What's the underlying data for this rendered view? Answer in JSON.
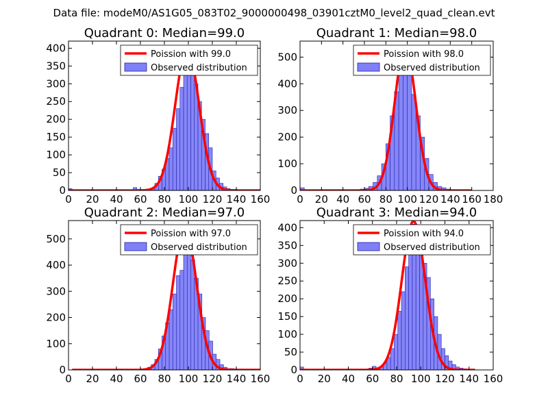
{
  "figure": {
    "suptitle": "Data file: modeM0/AS1G05_083T02_9000000498_03901cztM0_level2_quad_clean.evt"
  },
  "colors": {
    "bar_fill": "#7f7ff8",
    "bar_edge": "#2222aa",
    "line": "#ff0000"
  },
  "chart_data": [
    {
      "type": "bar",
      "title": "Quadrant 0: Median=99.0",
      "xlim": [
        0,
        160
      ],
      "ylim": [
        0,
        420
      ],
      "xticks": [
        0,
        20,
        40,
        60,
        80,
        100,
        120,
        140,
        160
      ],
      "yticks": [
        0,
        50,
        100,
        150,
        200,
        250,
        300,
        350,
        400
      ],
      "legend": {
        "position": "top-right",
        "line_label": "Poission with 99.0",
        "bar_label": "Observed distribution"
      },
      "poisson_mean": 99.0,
      "poisson_peak": 399,
      "line_x": [
        0,
        60,
        160
      ],
      "bin_width": 3,
      "bins_x": [
        0,
        54,
        57,
        69,
        72,
        75,
        78,
        81,
        84,
        87,
        90,
        93,
        96,
        99,
        102,
        105,
        108,
        111,
        114,
        117,
        120,
        123,
        126,
        129,
        132,
        135,
        138
      ],
      "bins_y": [
        5,
        8,
        3,
        5,
        20,
        40,
        60,
        90,
        120,
        175,
        230,
        290,
        380,
        380,
        340,
        300,
        250,
        200,
        160,
        120,
        55,
        35,
        20,
        10,
        5,
        3,
        3
      ]
    },
    {
      "type": "bar",
      "title": "Quadrant 1: Median=98.0",
      "xlim": [
        0,
        180
      ],
      "ylim": [
        0,
        560
      ],
      "xticks": [
        0,
        20,
        40,
        60,
        80,
        100,
        120,
        140,
        160,
        180
      ],
      "yticks": [
        0,
        100,
        200,
        300,
        400,
        500
      ],
      "legend": {
        "position": "top-right",
        "line_label": "Poission with 98.0",
        "bar_label": "Observed distribution"
      },
      "poisson_mean": 98.0,
      "poisson_peak": 540,
      "line_x": [
        0,
        60,
        160
      ],
      "bin_width": 4,
      "bins_x": [
        0,
        56,
        60,
        64,
        68,
        72,
        76,
        80,
        84,
        88,
        92,
        96,
        100,
        104,
        108,
        112,
        116,
        120,
        124,
        128,
        132,
        136,
        140,
        144
      ],
      "bins_y": [
        10,
        5,
        8,
        15,
        30,
        55,
        100,
        175,
        280,
        370,
        480,
        540,
        500,
        360,
        280,
        200,
        120,
        60,
        30,
        15,
        10,
        5,
        3,
        2
      ]
    },
    {
      "type": "bar",
      "title": "Quadrant 2: Median=97.0",
      "xlim": [
        0,
        160
      ],
      "ylim": [
        0,
        570
      ],
      "xticks": [
        0,
        20,
        40,
        60,
        80,
        100,
        120,
        140,
        160
      ],
      "yticks": [
        0,
        100,
        200,
        300,
        400,
        500
      ],
      "legend": {
        "position": "top-right",
        "line_label": "Poission with 97.0",
        "bar_label": "Observed distribution"
      },
      "poisson_mean": 97.0,
      "poisson_peak": 545,
      "line_x": [
        3,
        60,
        160
      ],
      "bin_width": 3.3,
      "bins_x": [
        63,
        66,
        69,
        72,
        75,
        78,
        81,
        84,
        87,
        90,
        93,
        96,
        99,
        102,
        105,
        108,
        111,
        114,
        117,
        120,
        123,
        126,
        129,
        132,
        135,
        138,
        141,
        144,
        147
      ],
      "bins_y": [
        5,
        10,
        20,
        40,
        80,
        130,
        180,
        230,
        290,
        360,
        380,
        550,
        480,
        420,
        350,
        290,
        200,
        150,
        110,
        60,
        40,
        20,
        10,
        5,
        5,
        3,
        3,
        3,
        3
      ]
    },
    {
      "type": "bar",
      "title": "Quadrant 3: Median=94.0",
      "xlim": [
        0,
        160
      ],
      "ylim": [
        0,
        420
      ],
      "xticks": [
        0,
        20,
        40,
        60,
        80,
        100,
        120,
        140,
        160
      ],
      "yticks": [
        0,
        50,
        100,
        150,
        200,
        250,
        300,
        350,
        400
      ],
      "legend": {
        "position": "top-right",
        "line_label": "Poission with 94.0",
        "bar_label": "Observed distribution"
      },
      "poisson_mean": 94.0,
      "poisson_peak": 418,
      "line_x": [
        0,
        55,
        145
      ],
      "bin_width": 3,
      "bins_x": [
        0,
        57,
        60,
        63,
        66,
        69,
        72,
        75,
        78,
        81,
        84,
        87,
        90,
        93,
        96,
        99,
        102,
        105,
        108,
        111,
        114,
        117,
        120,
        123,
        126,
        129,
        132,
        135,
        138
      ],
      "bins_y": [
        8,
        5,
        10,
        5,
        10,
        20,
        35,
        60,
        100,
        165,
        220,
        290,
        360,
        410,
        370,
        350,
        300,
        260,
        200,
        150,
        100,
        60,
        40,
        25,
        15,
        8,
        5,
        3,
        2
      ]
    }
  ]
}
